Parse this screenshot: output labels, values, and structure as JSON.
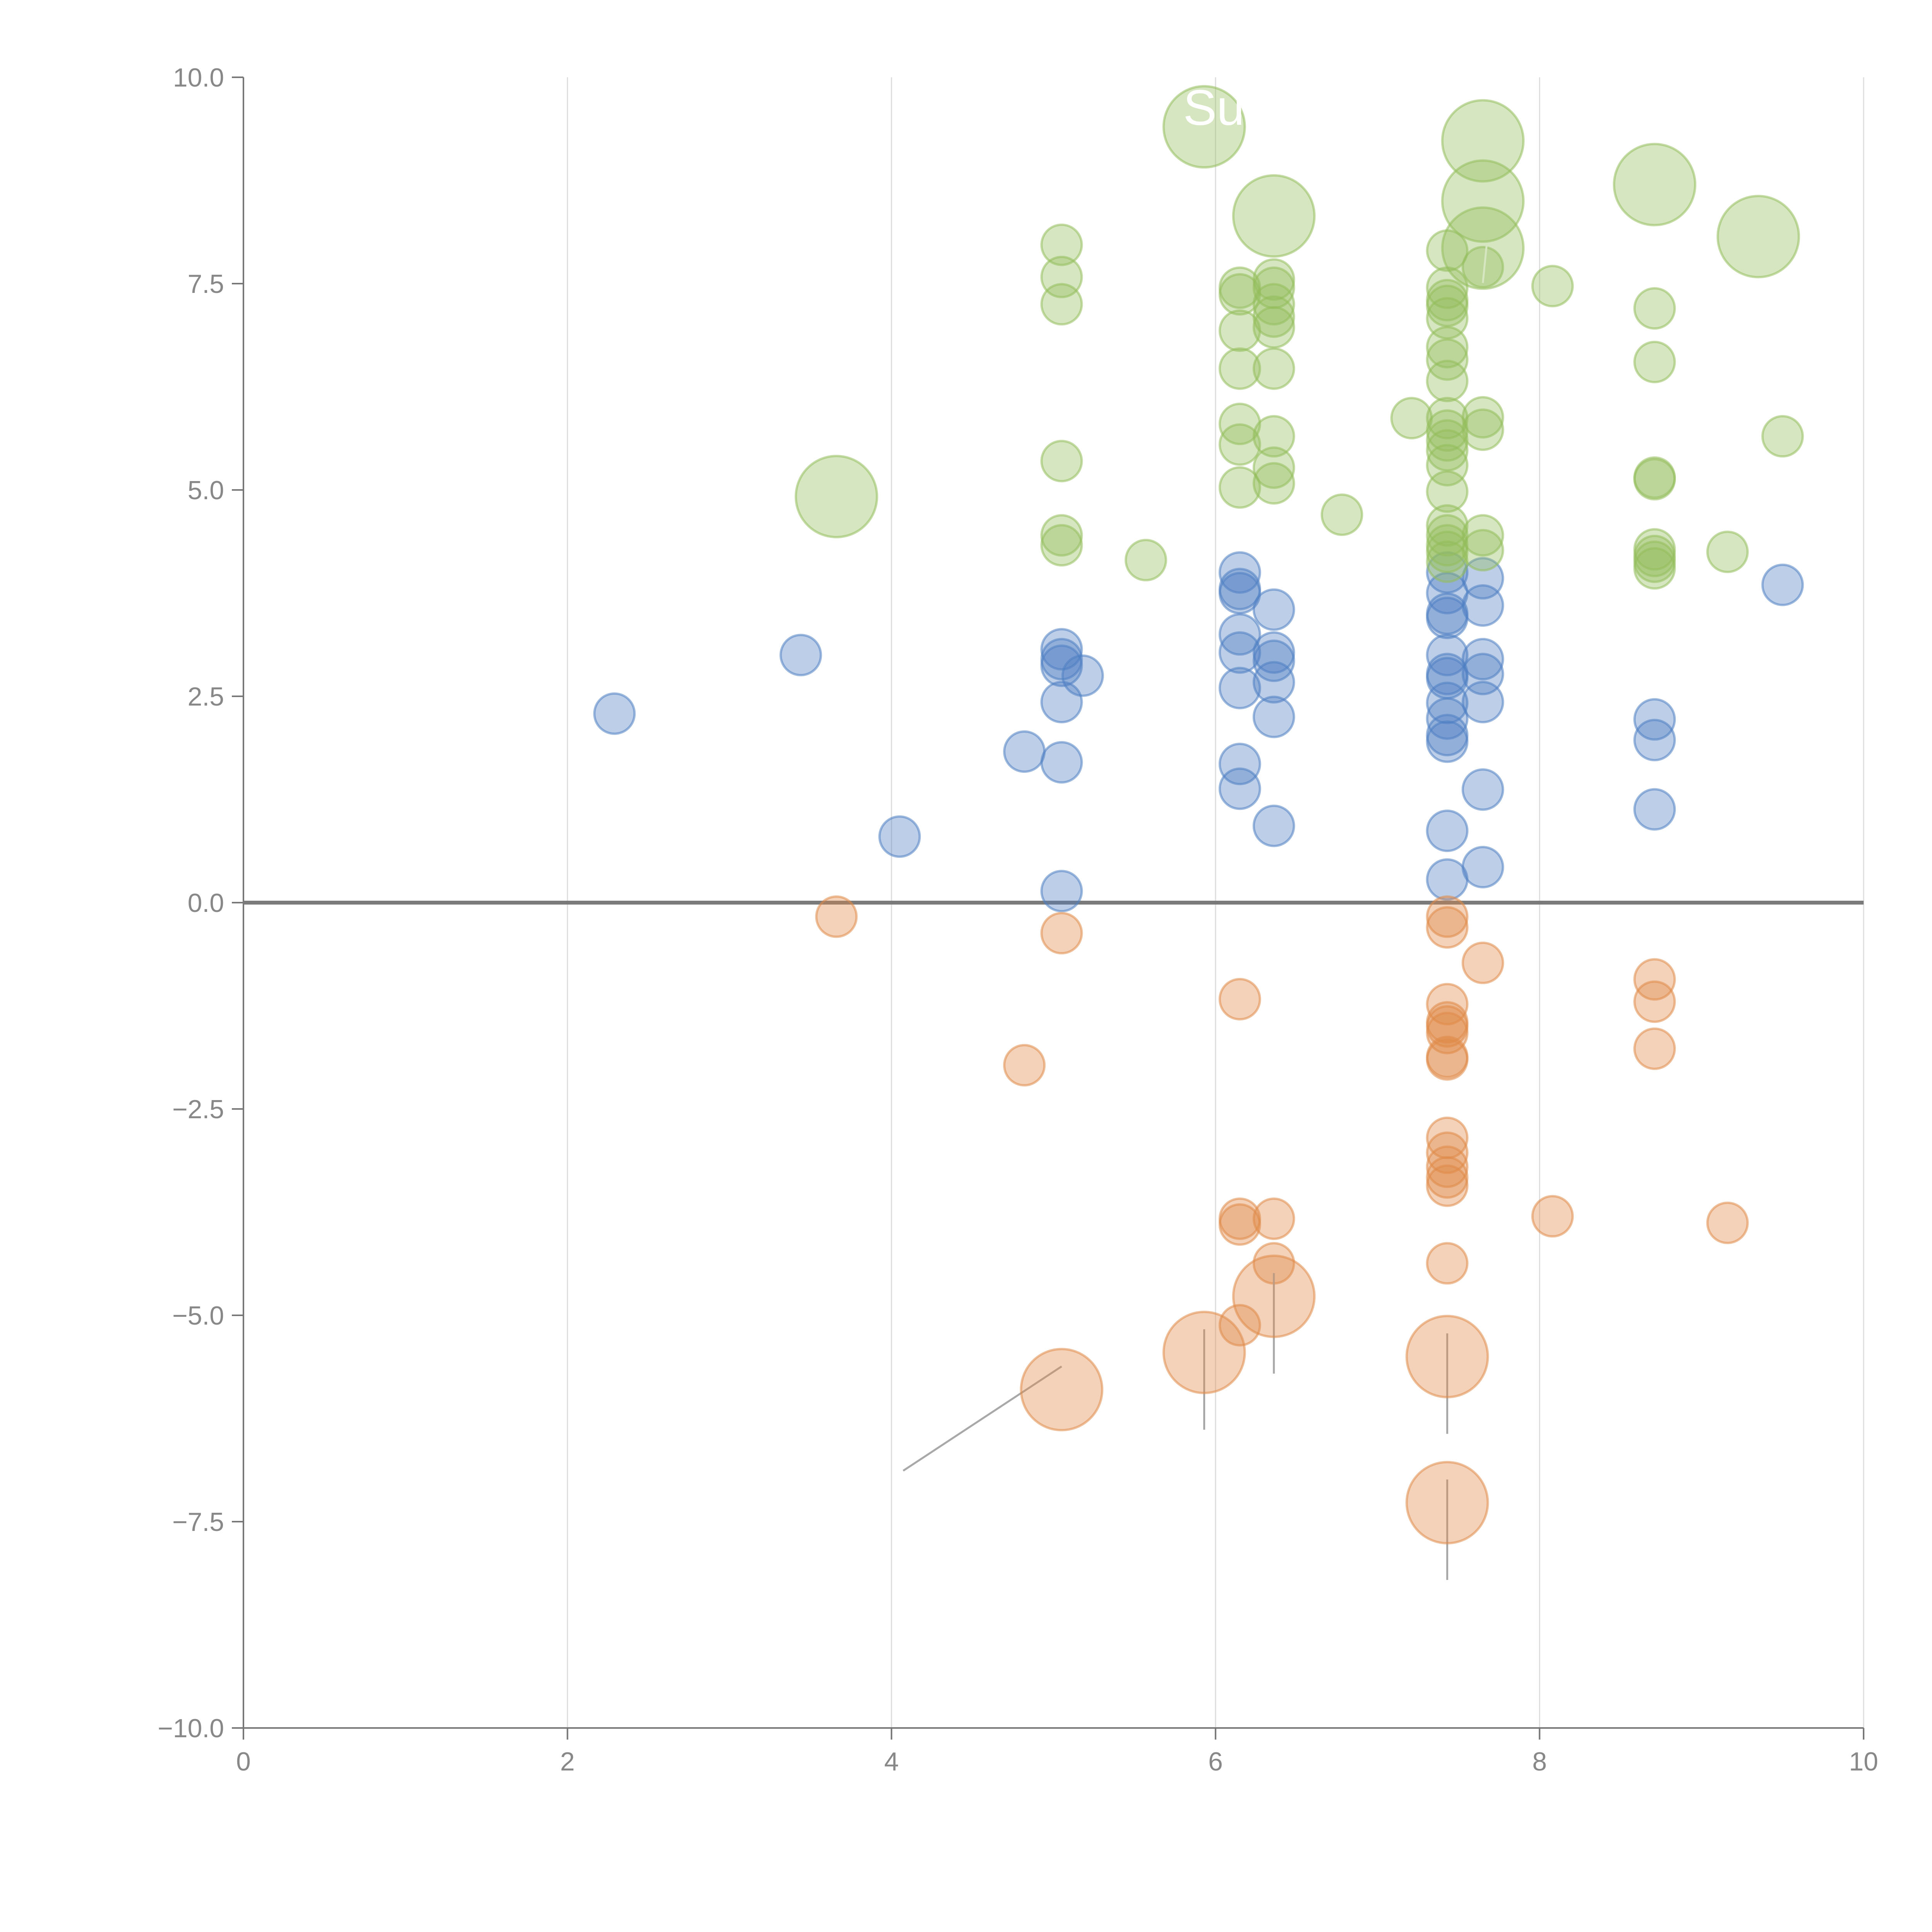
{
  "chart_data": {
    "type": "scatter",
    "title": "",
    "xlabel": "",
    "ylabel": "",
    "xlim": [
      0,
      10
    ],
    "ylim": [
      -10,
      10
    ],
    "x_ticks": [
      0,
      2,
      4,
      6,
      8,
      10
    ],
    "x_tick_labels": [
      "0",
      "2",
      "4",
      "6",
      "8",
      "10"
    ],
    "y_ticks": [
      -10,
      -7.5,
      -5,
      -2.5,
      0,
      2.5,
      5,
      7.5,
      10
    ],
    "y_tick_labels": [
      "−10.0",
      "−7.5",
      "−5.0",
      "−2.5",
      "0.0",
      "2.5",
      "5.0",
      "7.5",
      "10.0"
    ],
    "grid": "vertical",
    "legend": "none",
    "reference_line": 0,
    "annotation_fragment": "Su",
    "series": [
      {
        "name": "blue",
        "color": "#4f7fc2",
        "points": [
          [
            2.29,
            2.29
          ],
          [
            3.44,
            3.0
          ],
          [
            4.05,
            0.8
          ],
          [
            4.82,
            1.83
          ],
          [
            5.05,
            3.07
          ],
          [
            5.05,
            2.95
          ],
          [
            5.05,
            2.87
          ],
          [
            5.05,
            2.43
          ],
          [
            5.05,
            1.7
          ],
          [
            5.05,
            0.14
          ],
          [
            5.18,
            2.75
          ],
          [
            6.15,
            4.0
          ],
          [
            6.15,
            3.8
          ],
          [
            6.15,
            3.75
          ],
          [
            6.15,
            3.25
          ],
          [
            6.15,
            3.03
          ],
          [
            6.15,
            2.6
          ],
          [
            6.15,
            1.68
          ],
          [
            6.15,
            1.38
          ],
          [
            6.36,
            3.55
          ],
          [
            6.36,
            3.03
          ],
          [
            6.36,
            2.93
          ],
          [
            6.36,
            2.67
          ],
          [
            6.36,
            2.25
          ],
          [
            6.36,
            0.93
          ],
          [
            7.43,
            4.0
          ],
          [
            7.43,
            3.75
          ],
          [
            7.43,
            3.5
          ],
          [
            7.43,
            3.45
          ],
          [
            7.43,
            3.0
          ],
          [
            7.43,
            2.77
          ],
          [
            7.43,
            2.72
          ],
          [
            7.43,
            2.42
          ],
          [
            7.43,
            2.23
          ],
          [
            7.43,
            2.03
          ],
          [
            7.43,
            1.95
          ],
          [
            7.43,
            0.87
          ],
          [
            7.43,
            0.28
          ],
          [
            7.65,
            3.93
          ],
          [
            7.65,
            3.6
          ],
          [
            7.65,
            2.95
          ],
          [
            7.65,
            2.77
          ],
          [
            7.65,
            2.43
          ],
          [
            7.65,
            1.37
          ],
          [
            7.65,
            0.43
          ],
          [
            8.71,
            2.22
          ],
          [
            8.71,
            1.97
          ],
          [
            8.71,
            1.13
          ],
          [
            9.5,
            3.85
          ]
        ]
      },
      {
        "name": "orange",
        "color": "#e08a48",
        "points": [
          [
            3.66,
            -0.17
          ],
          [
            4.82,
            -1.97
          ],
          [
            5.05,
            -0.37
          ],
          [
            6.15,
            -1.17
          ],
          [
            6.15,
            -3.83
          ],
          [
            6.15,
            -3.9
          ],
          [
            6.15,
            -5.12
          ],
          [
            6.36,
            -3.83
          ],
          [
            6.36,
            -4.37
          ],
          [
            7.43,
            -0.17
          ],
          [
            7.43,
            -0.3
          ],
          [
            7.43,
            -1.23
          ],
          [
            7.43,
            -1.45
          ],
          [
            7.43,
            -1.5
          ],
          [
            7.43,
            -1.58
          ],
          [
            7.43,
            -1.87
          ],
          [
            7.43,
            -1.9
          ],
          [
            7.43,
            -2.85
          ],
          [
            7.43,
            -3.03
          ],
          [
            7.43,
            -3.2
          ],
          [
            7.43,
            -3.33
          ],
          [
            7.43,
            -3.43
          ],
          [
            7.43,
            -4.37
          ],
          [
            7.65,
            -0.73
          ],
          [
            8.08,
            -3.8
          ],
          [
            8.71,
            -0.93
          ],
          [
            8.71,
            -1.2
          ],
          [
            8.71,
            -1.77
          ],
          [
            9.16,
            -3.88
          ]
        ],
        "highlighted": [
          [
            5.05,
            -5.9
          ],
          [
            5.93,
            -5.45
          ],
          [
            6.36,
            -4.77
          ],
          [
            7.43,
            -5.5
          ],
          [
            7.43,
            -7.27
          ]
        ]
      },
      {
        "name": "green",
        "color": "#93bd5b",
        "points": [
          [
            5.05,
            7.97
          ],
          [
            5.05,
            7.58
          ],
          [
            5.05,
            7.25
          ],
          [
            5.05,
            5.35
          ],
          [
            5.05,
            4.45
          ],
          [
            5.05,
            4.33
          ],
          [
            5.57,
            4.15
          ],
          [
            6.15,
            7.45
          ],
          [
            6.15,
            7.37
          ],
          [
            6.15,
            6.93
          ],
          [
            6.15,
            6.47
          ],
          [
            6.15,
            5.8
          ],
          [
            6.15,
            5.55
          ],
          [
            6.15,
            5.03
          ],
          [
            6.36,
            7.55
          ],
          [
            6.36,
            7.45
          ],
          [
            6.36,
            7.25
          ],
          [
            6.36,
            7.1
          ],
          [
            6.36,
            6.97
          ],
          [
            6.36,
            6.47
          ],
          [
            6.36,
            5.65
          ],
          [
            6.36,
            5.27
          ],
          [
            6.36,
            5.08
          ],
          [
            6.78,
            4.7
          ],
          [
            7.21,
            5.87
          ],
          [
            7.43,
            7.9
          ],
          [
            7.43,
            7.45
          ],
          [
            7.43,
            7.3
          ],
          [
            7.43,
            7.23
          ],
          [
            7.43,
            7.08
          ],
          [
            7.43,
            6.73
          ],
          [
            7.43,
            6.58
          ],
          [
            7.43,
            6.32
          ],
          [
            7.43,
            5.87
          ],
          [
            7.43,
            5.72
          ],
          [
            7.43,
            5.6
          ],
          [
            7.43,
            5.48
          ],
          [
            7.43,
            5.3
          ],
          [
            7.43,
            4.98
          ],
          [
            7.43,
            4.57
          ],
          [
            7.43,
            4.45
          ],
          [
            7.43,
            4.33
          ],
          [
            7.43,
            4.25
          ],
          [
            7.43,
            4.13
          ],
          [
            7.65,
            5.88
          ],
          [
            7.65,
            5.73
          ],
          [
            7.65,
            4.45
          ],
          [
            7.65,
            4.27
          ],
          [
            7.65,
            7.7
          ],
          [
            8.08,
            7.47
          ],
          [
            8.71,
            7.2
          ],
          [
            8.71,
            6.55
          ],
          [
            8.71,
            5.15
          ],
          [
            8.71,
            5.13
          ],
          [
            8.71,
            4.28
          ],
          [
            8.71,
            4.2
          ],
          [
            8.71,
            4.13
          ],
          [
            8.71,
            4.05
          ],
          [
            9.16,
            4.25
          ],
          [
            9.5,
            5.65
          ]
        ],
        "highlighted": [
          [
            3.66,
            4.92
          ],
          [
            5.93,
            9.4
          ],
          [
            6.36,
            8.32
          ],
          [
            7.65,
            9.23
          ],
          [
            7.65,
            8.5
          ],
          [
            7.65,
            7.93
          ],
          [
            8.71,
            8.7
          ],
          [
            9.35,
            8.07
          ]
        ]
      }
    ]
  }
}
